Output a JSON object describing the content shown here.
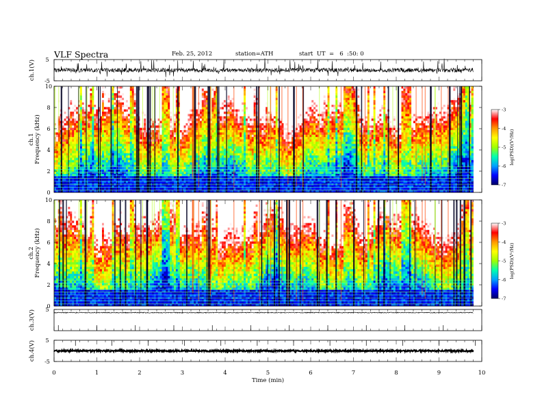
{
  "header": {
    "title": "VLF  Spectra",
    "date": "Feb. 25, 2012",
    "station": "station=ATH",
    "start": "start  UT  =   6  :50: 0"
  },
  "chart_data": [
    {
      "type": "line",
      "panel": "ch1-waveform",
      "ylabel": "ch.1(V)",
      "ylim": [
        -5,
        5
      ],
      "yticks": [
        "5",
        "-5"
      ],
      "series": [
        {
          "baseline": 0,
          "noise_amplitude": 1,
          "spike_amplitude": 4
        }
      ]
    },
    {
      "type": "heatmap",
      "panel": "ch1-spectrogram",
      "ylabel_line1": "ch.1",
      "ylabel_line2": "Frequency  (kHz)",
      "ylim": [
        0,
        10
      ],
      "yticks": [
        "0",
        "2",
        "4",
        "6",
        "8",
        "10"
      ],
      "colorbar": {
        "label": "log(PSD)(V²/Hz)",
        "range": [
          -7,
          -3
        ],
        "ticks": [
          "-3",
          "-4",
          "-5",
          "-6",
          "-7"
        ],
        "colors": [
          "#000066",
          "#0000ff",
          "#00a0ff",
          "#00ffb0",
          "#a0ff00",
          "#ffff00",
          "#ff9900",
          "#ff0000",
          "#ffffff"
        ]
      }
    },
    {
      "type": "heatmap",
      "panel": "ch2-spectrogram",
      "ylabel_line1": "ch.2",
      "ylabel_line2": "Frequency  (kHz)",
      "ylim": [
        0,
        10
      ],
      "yticks": [
        "0",
        "2",
        "4",
        "6",
        "8",
        "10"
      ],
      "colorbar": {
        "label": "log(PSD)(V²/Hz)",
        "range": [
          -7,
          -3
        ],
        "ticks": [
          "-3",
          "-4",
          "-5",
          "-6",
          "-7"
        ]
      }
    },
    {
      "type": "line",
      "panel": "ch3-waveform",
      "ylabel": "ch.3(V)",
      "ylim": [
        -5,
        5
      ],
      "yticks": [
        "5"
      ],
      "series": [
        {
          "baseline": 3.5,
          "noise_amplitude": 0.2
        }
      ]
    },
    {
      "type": "line",
      "panel": "ch4-waveform",
      "ylabel": "ch.4(V)",
      "ylim": [
        -5,
        5
      ],
      "yticks": [
        "5",
        "-5"
      ],
      "series": [
        {
          "baseline": 0,
          "noise_amplitude": 0.4
        }
      ]
    }
  ],
  "xaxis": {
    "label": "Time  (min)",
    "xlim": [
      0,
      10
    ],
    "ticks": [
      "0",
      "1",
      "2",
      "3",
      "4",
      "5",
      "6",
      "7",
      "8",
      "9",
      "10"
    ],
    "data_end": 9.8
  }
}
